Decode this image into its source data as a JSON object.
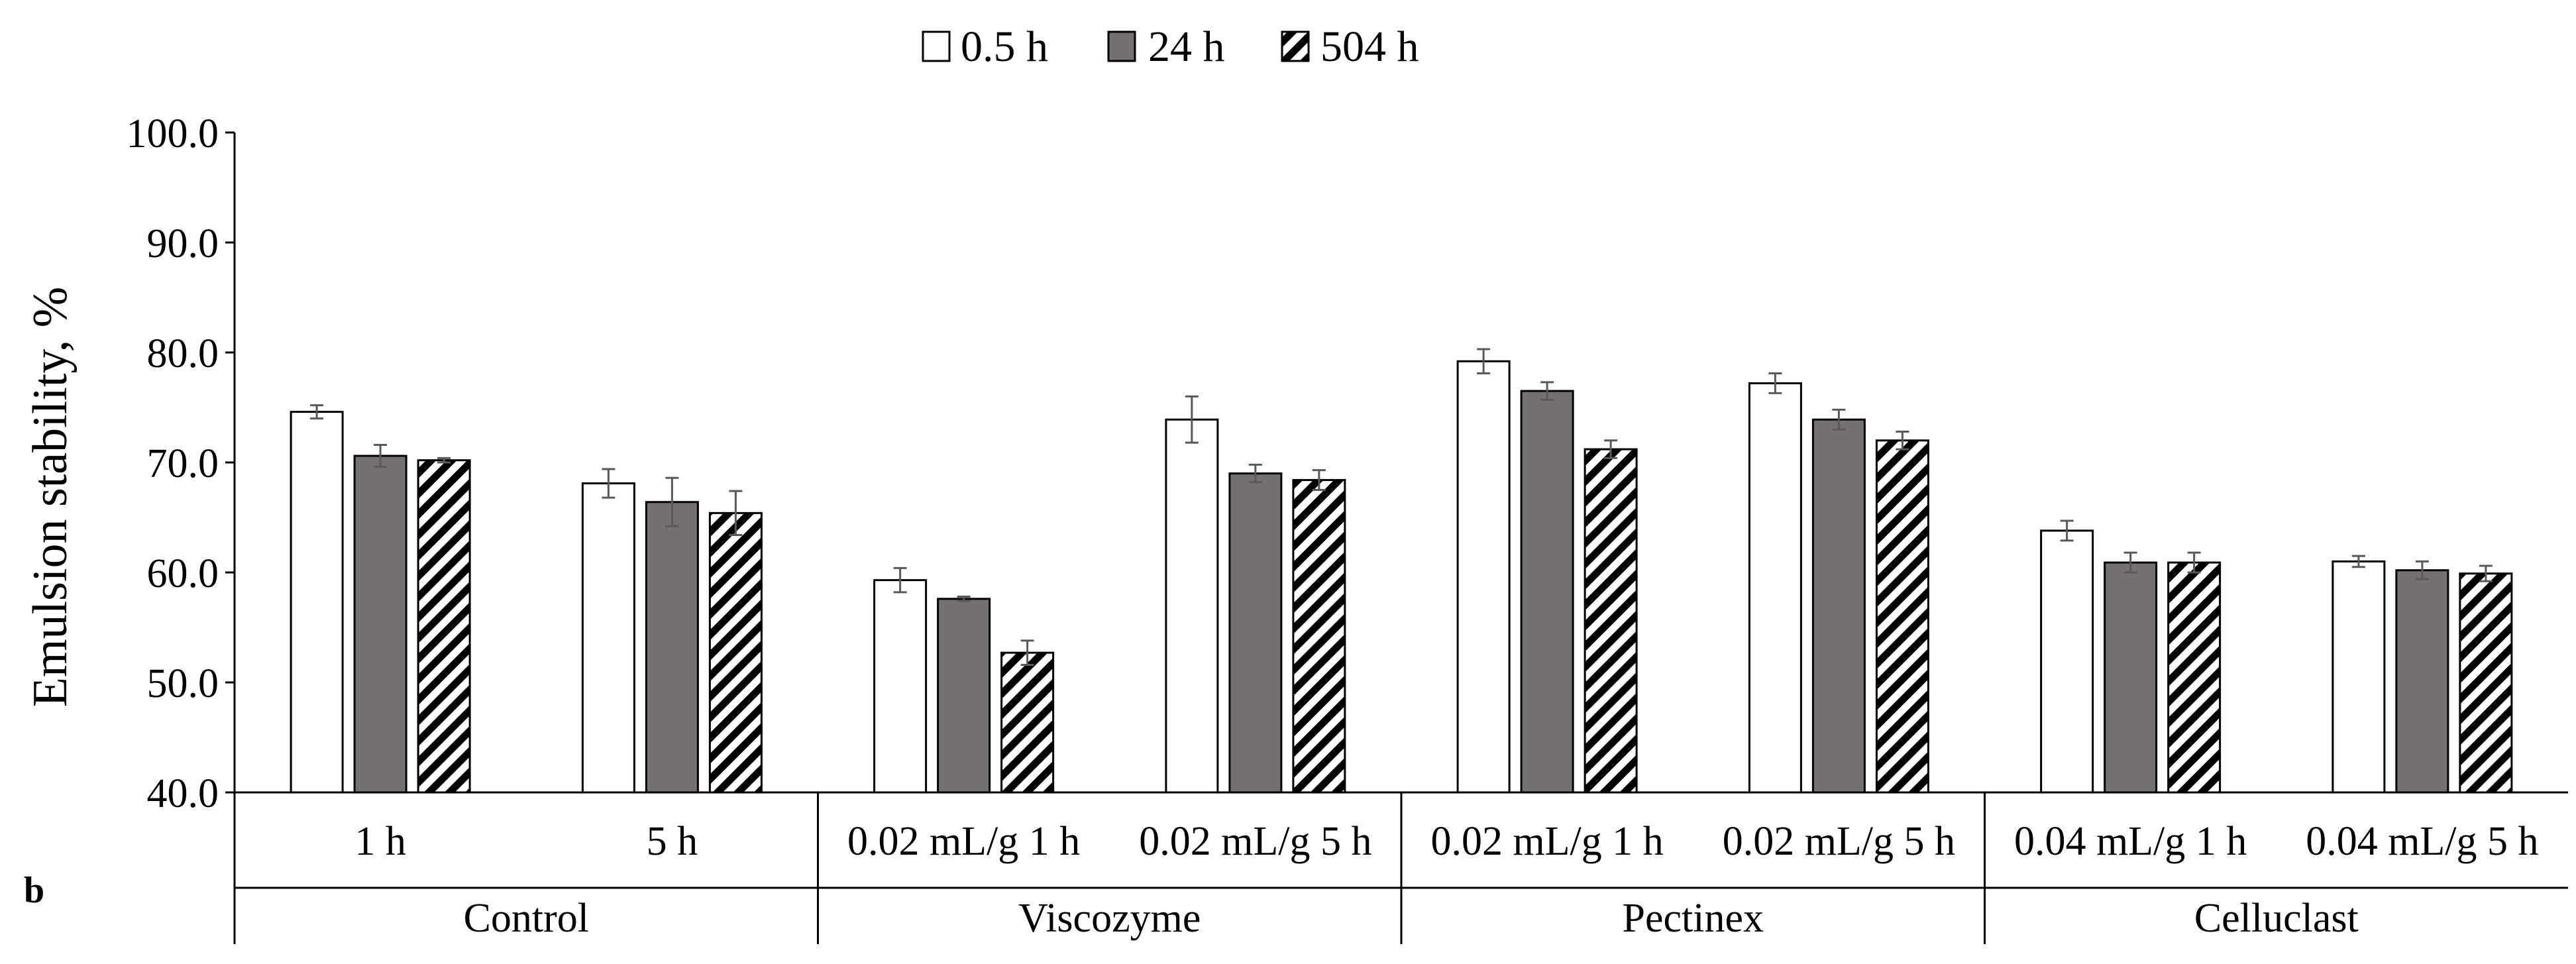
{
  "panel_label": "b",
  "colors": {
    "open_fill": "#ffffff",
    "filled_fill": "#767171",
    "hatch_stroke": "#000000",
    "bar_outline": "#000000",
    "error_bar": "#595959",
    "axis": "#000000"
  },
  "chart_data": {
    "type": "bar",
    "title": "",
    "xlabel": "",
    "ylabel": "Emulsion stability, %",
    "ylim": [
      40,
      100
    ],
    "yticks": [
      "40.0",
      "50.0",
      "60.0",
      "70.0",
      "80.0",
      "90.0",
      "100.0"
    ],
    "legend_position": "top-center",
    "categories": [
      "1 h",
      "5 h",
      "0.02 mL/g 1 h",
      "0.02 mL/g 5 h",
      "0.02 mL/g 1 h",
      "0.02 mL/g 5 h",
      "0.04 mL/g 1 h",
      "0.04 mL/g 5 h"
    ],
    "groups": [
      {
        "name": "Control",
        "span": 2
      },
      {
        "name": "Viscozyme",
        "span": 2
      },
      {
        "name": "Pectinex",
        "span": 2
      },
      {
        "name": "Celluclast",
        "span": 2
      }
    ],
    "series": [
      {
        "name": "0.5 h",
        "pattern": "open",
        "values": [
          74.6,
          68.1,
          59.3,
          73.9,
          79.2,
          77.2,
          63.8,
          61.0
        ],
        "errors": [
          0.6,
          1.3,
          1.1,
          2.1,
          1.1,
          0.9,
          0.9,
          0.5
        ]
      },
      {
        "name": "24 h",
        "pattern": "filled",
        "values": [
          70.6,
          66.4,
          57.6,
          69.0,
          76.5,
          73.9,
          60.9,
          60.2
        ],
        "errors": [
          1.0,
          2.2,
          0.2,
          0.8,
          0.8,
          0.9,
          0.9,
          0.8
        ]
      },
      {
        "name": "504 h",
        "pattern": "hatched",
        "values": [
          70.2,
          65.4,
          52.7,
          68.4,
          71.2,
          72.0,
          60.9,
          59.9
        ],
        "errors": [
          0.2,
          2.0,
          1.1,
          0.9,
          0.8,
          0.8,
          0.9,
          0.7
        ]
      }
    ]
  }
}
